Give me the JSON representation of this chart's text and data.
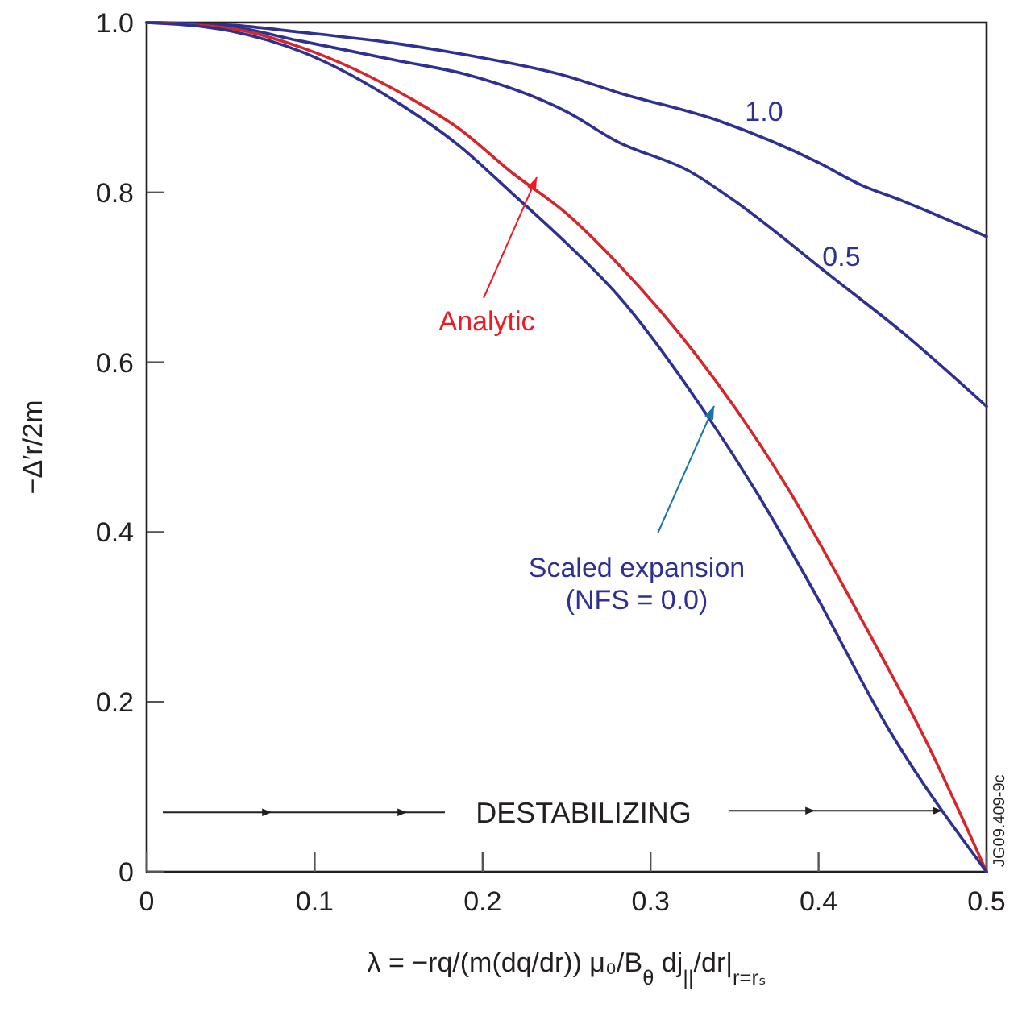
{
  "chart_data": {
    "type": "line",
    "xlabel": "λ = −rq/(m(dq/dr)) μ₀/B$_{θ}$ dj$_{||}$/dr|$_{r=rₛ}$",
    "ylabel": "−Δ′r/2m",
    "xlim": [
      0,
      0.5
    ],
    "xticks": [
      0,
      0.1,
      0.2,
      0.3,
      0.4,
      0.5
    ],
    "ylim": [
      0,
      1.0
    ],
    "yticks": [
      {
        "value": 0,
        "label": "0"
      },
      0.2,
      0.4,
      0.6,
      0.8,
      {
        "value": 1.0,
        "label": "1.0"
      }
    ],
    "grid": false,
    "marker": "none",
    "line_style": "solid",
    "annotations": [
      "DESTABILIZING",
      "JG09.409-9c"
    ],
    "series": [
      {
        "name": "1.0",
        "color": "#2e3192",
        "x": [
          0,
          0.05,
          0.09,
          0.15,
          0.19,
          0.25,
          0.28,
          0.341,
          0.4,
          0.424,
          0.45,
          0.5
        ],
        "values": [
          1.0,
          0.997,
          0.989,
          0.975,
          0.962,
          0.937,
          0.918,
          0.884,
          0.835,
          0.81,
          0.79,
          0.748
        ]
      },
      {
        "name": "0.5",
        "color": "#2e3192",
        "x": [
          0,
          0.05,
          0.09,
          0.15,
          0.19,
          0.25,
          0.28,
          0.324,
          0.35,
          0.407,
          0.45,
          0.5
        ],
        "values": [
          1.0,
          0.995,
          0.979,
          0.955,
          0.939,
          0.895,
          0.86,
          0.824,
          0.79,
          0.702,
          0.635,
          0.548
        ]
      },
      {
        "name": "Analytic",
        "color": "#d7262a",
        "x": [
          0,
          0.05,
          0.093,
          0.155,
          0.186,
          0.217,
          0.25,
          0.28,
          0.327,
          0.38,
          0.427,
          0.464,
          0.5
        ],
        "values": [
          1.0,
          0.993,
          0.97,
          0.913,
          0.875,
          0.824,
          0.775,
          0.717,
          0.609,
          0.457,
          0.292,
          0.154,
          0
        ]
      },
      {
        "name": "Scaled expansion\n(NFS = 0.0)",
        "color": "#2e3192",
        "x": [
          0,
          0.05,
          0.093,
          0.15,
          0.186,
          0.217,
          0.25,
          0.28,
          0.33,
          0.364,
          0.395,
          0.442,
          0.5
        ],
        "values": [
          1.0,
          0.99,
          0.965,
          0.905,
          0.855,
          0.8,
          0.74,
          0.68,
          0.548,
          0.444,
          0.338,
          0.167,
          0
        ]
      }
    ]
  }
}
